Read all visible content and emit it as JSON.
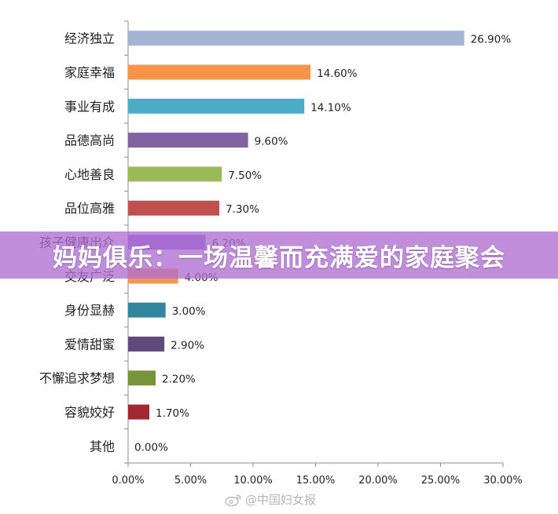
{
  "chart_data": {
    "type": "bar",
    "orientation": "horizontal",
    "categories": [
      "经济独立",
      "家庭幸福",
      "事业有成",
      "品德高尚",
      "心地善良",
      "品位高雅",
      "孩子健康出众",
      "交友广泛",
      "身份显赫",
      "爱情甜蜜",
      "不懈追求梦想",
      "容貌姣好",
      "其他"
    ],
    "values": [
      26.9,
      14.6,
      14.1,
      9.6,
      7.5,
      7.3,
      6.2,
      4.0,
      3.0,
      2.9,
      2.2,
      1.7,
      0.0
    ],
    "value_labels": [
      "26.90%",
      "14.60%",
      "14.10%",
      "9.60%",
      "7.50%",
      "7.30%",
      "6.20%",
      "4.00%",
      "3.00%",
      "2.90%",
      "2.20%",
      "1.70%",
      "0.00%"
    ],
    "colors": [
      "#a5b4d4",
      "#f6954a",
      "#4bacc6",
      "#8064a2",
      "#9bbb59",
      "#c0504d",
      "#8a6bd0",
      "#f79646",
      "#31859c",
      "#604a7b",
      "#77933c",
      "#a2282f",
      "#cccccc"
    ],
    "xlim": [
      0,
      30
    ],
    "xticks": [
      "0.00%",
      "5.00%",
      "10.00%",
      "15.00%",
      "20.00%",
      "25.00%",
      "30.00%"
    ],
    "grid": false,
    "legend": "none"
  },
  "banner": {
    "text": "妈妈俱乐：一场温馨而充满爱的家庭聚会"
  },
  "watermark": {
    "text": "@中国妇女报"
  }
}
